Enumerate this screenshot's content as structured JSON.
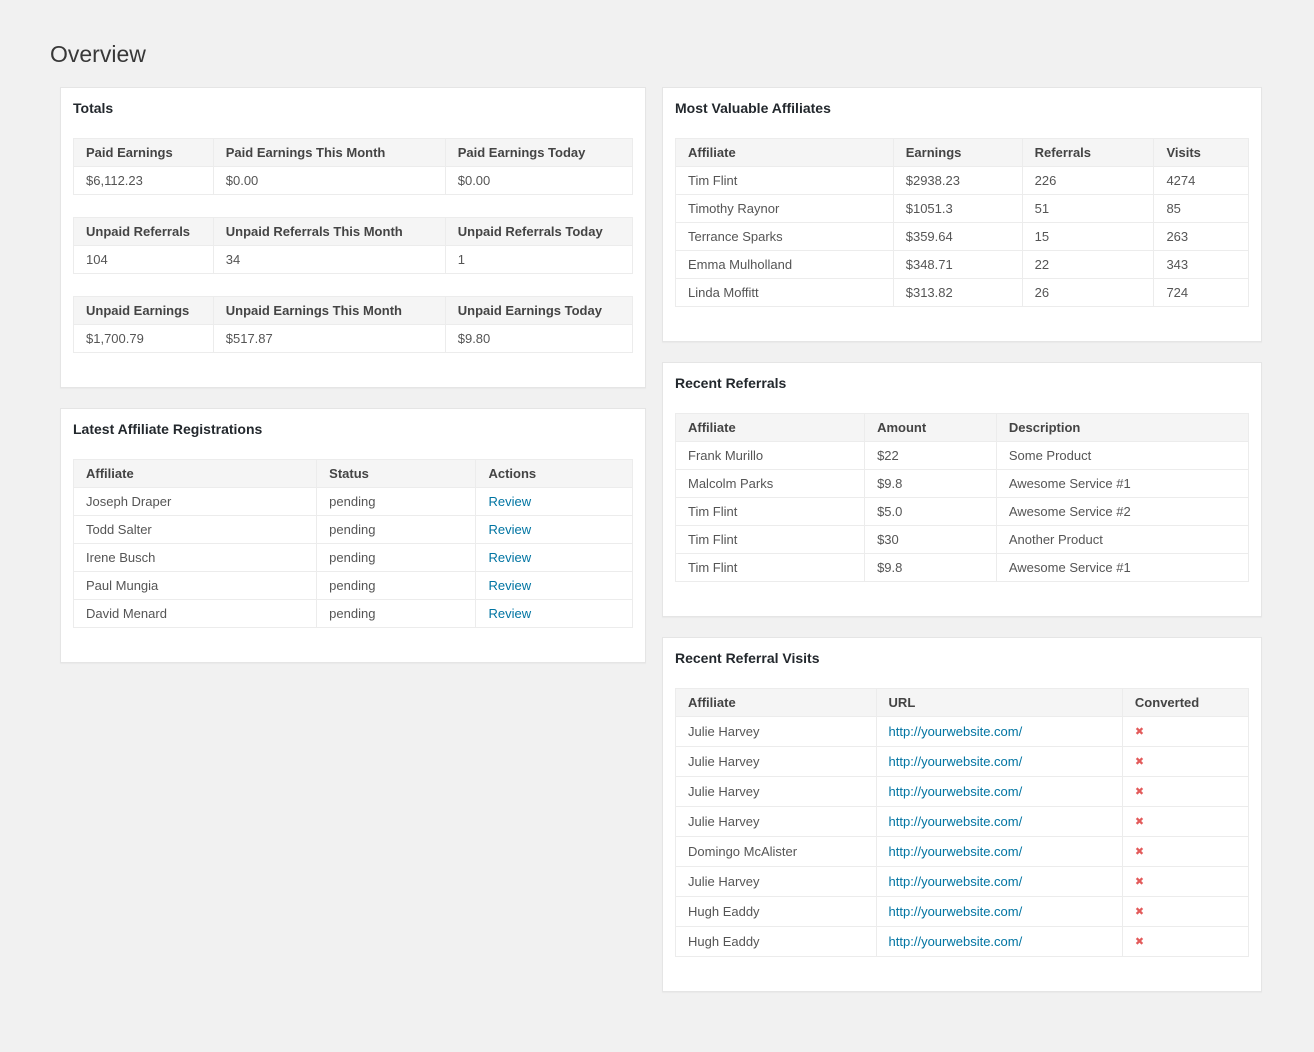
{
  "page": {
    "title": "Overview"
  },
  "colors": {
    "bg": "#f1f1f1",
    "panel_border": "#e5e5e5",
    "header_bg": "#f5f5f5",
    "link": "#0074a2",
    "danger": "#e35b5b",
    "text": "#555555"
  },
  "icons": {
    "not_converted": {
      "glyph": "✖",
      "meaning": "not converted",
      "color": "#e35b5b"
    }
  },
  "panels": {
    "totals": {
      "title": "Totals",
      "tables": [
        {
          "headers": [
            "Paid Earnings",
            "Paid Earnings This Month",
            "Paid Earnings Today"
          ],
          "values": [
            "$6,112.23",
            "$0.00",
            "$0.00"
          ]
        },
        {
          "headers": [
            "Unpaid Referrals",
            "Unpaid Referrals This Month",
            "Unpaid Referrals Today"
          ],
          "values": [
            "104",
            "34",
            "1"
          ]
        },
        {
          "headers": [
            "Unpaid Earnings",
            "Unpaid Earnings This Month",
            "Unpaid Earnings Today"
          ],
          "values": [
            "$1,700.79",
            "$517.87",
            "$9.80"
          ]
        }
      ]
    },
    "registrations": {
      "title": "Latest Affiliate Registrations",
      "headers": [
        "Affiliate",
        "Status",
        "Actions"
      ],
      "rows": [
        [
          "Joseph Draper",
          "pending",
          "Review"
        ],
        [
          "Todd Salter",
          "pending",
          "Review"
        ],
        [
          "Irene Busch",
          "pending",
          "Review"
        ],
        [
          "Paul Mungia",
          "pending",
          "Review"
        ],
        [
          "David Menard",
          "pending",
          "Review"
        ]
      ]
    },
    "valuable": {
      "title": "Most Valuable Affiliates",
      "headers": [
        "Affiliate",
        "Earnings",
        "Referrals",
        "Visits"
      ],
      "rows": [
        [
          "Tim Flint",
          "$2938.23",
          "226",
          "4274"
        ],
        [
          "Timothy Raynor",
          "$1051.3",
          "51",
          "85"
        ],
        [
          "Terrance Sparks",
          "$359.64",
          "15",
          "263"
        ],
        [
          "Emma Mulholland",
          "$348.71",
          "22",
          "343"
        ],
        [
          "Linda Moffitt",
          "$313.82",
          "26",
          "724"
        ]
      ]
    },
    "referrals": {
      "title": "Recent Referrals",
      "headers": [
        "Affiliate",
        "Amount",
        "Description"
      ],
      "rows": [
        [
          "Frank Murillo",
          "$22",
          "Some Product"
        ],
        [
          "Malcolm Parks",
          "$9.8",
          "Awesome Service #1"
        ],
        [
          "Tim Flint",
          "$5.0",
          "Awesome Service #2"
        ],
        [
          "Tim Flint",
          "$30",
          "Another Product"
        ],
        [
          "Tim Flint",
          "$9.8",
          "Awesome Service #1"
        ]
      ]
    },
    "visits": {
      "title": "Recent Referral Visits",
      "headers": [
        "Affiliate",
        "URL",
        "Converted"
      ],
      "rows": [
        [
          "Julie Harvey",
          "http://yourwebsite.com/",
          "✖"
        ],
        [
          "Julie Harvey",
          "http://yourwebsite.com/",
          "✖"
        ],
        [
          "Julie Harvey",
          "http://yourwebsite.com/",
          "✖"
        ],
        [
          "Julie Harvey",
          "http://yourwebsite.com/",
          "✖"
        ],
        [
          "Domingo McAlister",
          "http://yourwebsite.com/",
          "✖"
        ],
        [
          "Julie Harvey",
          "http://yourwebsite.com/",
          "✖"
        ],
        [
          "Hugh Eaddy",
          "http://yourwebsite.com/",
          "✖"
        ],
        [
          "Hugh Eaddy",
          "http://yourwebsite.com/",
          "✖"
        ]
      ]
    }
  }
}
